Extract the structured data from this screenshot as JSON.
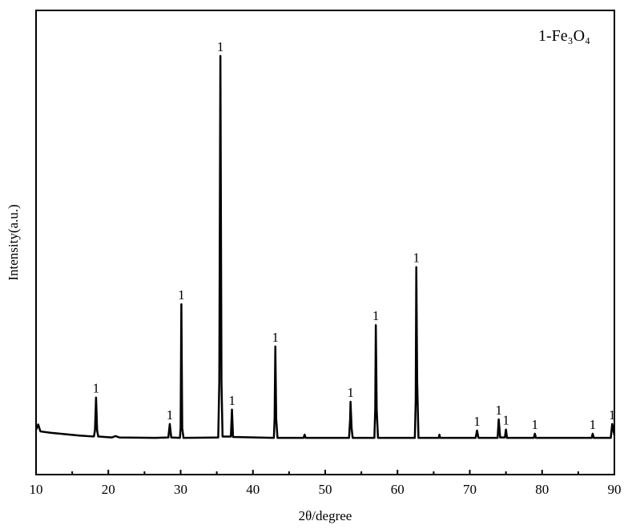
{
  "chart_data": {
    "type": "line",
    "xlabel": "2θ/degree",
    "ylabel": "Intensity(a.u.)",
    "xlim": [
      10,
      90
    ],
    "xticks": [
      10,
      20,
      30,
      40,
      50,
      60,
      70,
      80,
      90
    ],
    "xminor": [
      15,
      25,
      35,
      45,
      55,
      65,
      75,
      85
    ],
    "ylim": [
      0,
      100
    ],
    "legend": "upper right",
    "x": [
      10,
      10.3,
      10.6,
      12,
      14,
      16,
      18.0,
      18.15,
      18.3,
      18.45,
      18.6,
      20.5,
      21,
      21.5,
      26.5,
      28.3,
      28.5,
      28.7,
      29.9,
      30.0,
      30.1,
      30.22,
      30.4,
      35.2,
      35.35,
      35.5,
      35.65,
      35.8,
      36.95,
      37.1,
      37.25,
      42.9,
      43.0,
      43.1,
      43.22,
      43.4,
      47.0,
      47.15,
      47.3,
      53.3,
      53.45,
      53.5,
      53.65,
      53.8,
      56.8,
      56.92,
      57.0,
      57.12,
      57.3,
      62.4,
      62.52,
      62.6,
      62.72,
      62.9,
      65.7,
      65.8,
      65.9,
      70.8,
      71.0,
      71.2,
      73.85,
      74.0,
      74.2,
      74.85,
      75.0,
      75.15,
      78.85,
      79.0,
      79.15,
      86.85,
      87.0,
      87.15,
      89.5,
      89.7,
      90
    ],
    "series": [
      {
        "name": "1-Fe₃O₄",
        "color": "#000000",
        "values": [
          9.6,
          10.8,
          9.3,
          9.0,
          8.7,
          8.4,
          8.2,
          9.5,
          16.6,
          9.5,
          8.2,
          8.0,
          8.3,
          8.0,
          7.9,
          8.0,
          10.9,
          8.0,
          7.9,
          10,
          36.7,
          10,
          7.9,
          8.0,
          20,
          90.2,
          20,
          8.2,
          8.2,
          14.0,
          8.1,
          7.9,
          12,
          27.6,
          12,
          7.9,
          7.9,
          8.6,
          7.9,
          7.9,
          12,
          15.7,
          10,
          7.9,
          7.9,
          14,
          32.2,
          14,
          7.9,
          7.9,
          16,
          44.7,
          20,
          7.9,
          7.9,
          8.6,
          7.9,
          7.9,
          9.5,
          7.9,
          7.9,
          11.9,
          8.0,
          8.0,
          9.7,
          7.9,
          7.9,
          8.8,
          7.9,
          7.9,
          8.8,
          7.9,
          7.9,
          10.9,
          8.5
        ]
      }
    ],
    "annotations": [
      {
        "x": 18.3,
        "text": "1"
      },
      {
        "x": 28.5,
        "text": "1"
      },
      {
        "x": 30.1,
        "text": "1"
      },
      {
        "x": 35.5,
        "text": "1"
      },
      {
        "x": 37.1,
        "text": "1"
      },
      {
        "x": 43.1,
        "text": "1"
      },
      {
        "x": 53.5,
        "text": "1"
      },
      {
        "x": 57.0,
        "text": "1"
      },
      {
        "x": 62.6,
        "text": "1"
      },
      {
        "x": 71.0,
        "text": "1"
      },
      {
        "x": 74.0,
        "text": "1"
      },
      {
        "x": 75.0,
        "text": "1"
      },
      {
        "x": 79.0,
        "text": "1"
      },
      {
        "x": 87.0,
        "text": "1"
      },
      {
        "x": 89.7,
        "text": "1"
      }
    ]
  }
}
